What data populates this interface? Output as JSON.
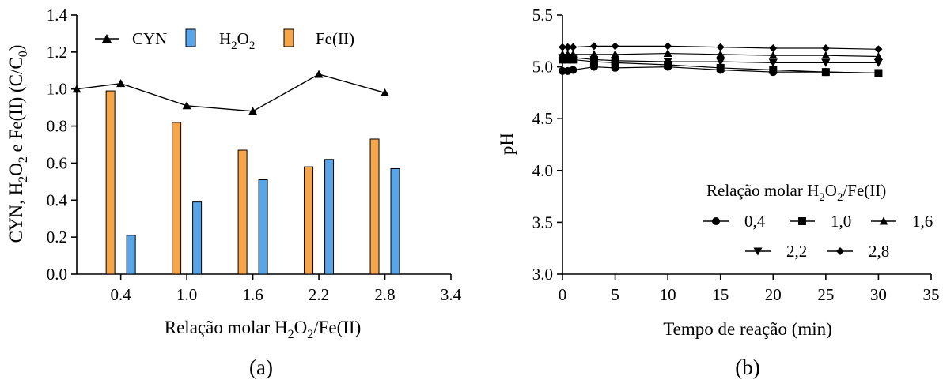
{
  "chart_data": [
    {
      "panel": "(a)",
      "type": "bar",
      "xlabel": "Relação molar H2O2/Fe(II)",
      "ylabel": "CYN, H2O2 e Fe(II) (C/C0)",
      "xlim": [
        0,
        3.4
      ],
      "ylim": [
        0,
        1.4
      ],
      "xticks": [
        "0.4",
        "1.0",
        "1.6",
        "2.2",
        "2.8",
        "3.4"
      ],
      "yticks": [
        "0.0",
        "0.2",
        "0.4",
        "0.6",
        "0.8",
        "1.0",
        "1.2",
        "1.4"
      ],
      "categories": [
        "0.4",
        "1.0",
        "1.6",
        "2.2",
        "2.8"
      ],
      "series": [
        {
          "name": "Fe(II)",
          "kind": "bar",
          "color": "#f5a54a",
          "values": [
            0.99,
            0.82,
            0.67,
            0.58,
            0.73
          ]
        },
        {
          "name": "H2O2",
          "kind": "bar",
          "color": "#5aa4e8",
          "values": [
            0.21,
            0.39,
            0.51,
            0.62,
            0.57
          ]
        },
        {
          "name": "CYN",
          "kind": "line",
          "marker": "triangle",
          "x": [
            0,
            0.4,
            1.0,
            1.6,
            2.2,
            2.8
          ],
          "values": [
            1.0,
            1.03,
            0.91,
            0.88,
            1.08,
            0.98
          ]
        }
      ],
      "legend": [
        "CYN",
        "H2O2",
        "Fe(II)"
      ],
      "legend_placement": "top"
    },
    {
      "panel": "(b)",
      "type": "line",
      "xlabel": "Tempo de reação (min)",
      "ylabel": "pH",
      "xlim": [
        0,
        35
      ],
      "ylim": [
        3.0,
        5.5
      ],
      "xticks": [
        "0",
        "5",
        "10",
        "15",
        "20",
        "25",
        "30",
        "35"
      ],
      "yticks": [
        "3.0",
        "3.5",
        "4.0",
        "4.5",
        "5.0",
        "5.5"
      ],
      "x": [
        0,
        0.5,
        1,
        3,
        5,
        10,
        15,
        20,
        25,
        30
      ],
      "legend_title": "Relação molar H2O2/Fe(II)",
      "legend_placement": "lower-right",
      "series": [
        {
          "name": "0,4",
          "marker": "circle",
          "values": [
            4.96,
            4.96,
            4.97,
            5.0,
            4.99,
            5.0,
            4.97,
            4.95,
            4.95,
            4.94
          ]
        },
        {
          "name": "1,0",
          "marker": "square",
          "values": [
            5.07,
            5.07,
            5.07,
            5.05,
            5.04,
            5.02,
            4.99,
            4.97,
            4.95,
            4.94
          ]
        },
        {
          "name": "1,6",
          "marker": "triangle-up",
          "values": [
            5.12,
            5.12,
            5.12,
            5.12,
            5.12,
            5.13,
            5.12,
            5.11,
            5.11,
            5.1
          ]
        },
        {
          "name": "2,2",
          "marker": "triangle-down",
          "values": [
            5.09,
            5.09,
            5.09,
            5.07,
            5.06,
            5.05,
            5.05,
            5.04,
            5.04,
            5.04
          ]
        },
        {
          "name": "2,8",
          "marker": "diamond",
          "values": [
            5.19,
            5.19,
            5.19,
            5.2,
            5.2,
            5.2,
            5.19,
            5.18,
            5.18,
            5.17
          ]
        }
      ]
    }
  ],
  "panels": {
    "a": {
      "label": "(a)",
      "ylabel": {
        "p1": "CYN, H",
        "s1": "2",
        "p2": "O",
        "s2": "2",
        "p3": " e Fe(II) (C/C",
        "s3": "0",
        "p4": ")"
      },
      "xlabel": {
        "p1": "Relação molar H",
        "s1": "2",
        "p2": "O",
        "s2": "2",
        "p3": "/Fe(II)"
      },
      "legend": {
        "cyn": "CYN",
        "h2o2_p1": "H",
        "h2o2_s1": "2",
        "h2o2_p2": "O",
        "h2o2_s2": "2",
        "fe": "Fe(II)"
      }
    },
    "b": {
      "label": "(b)",
      "ylabel": "pH",
      "xlabel": "Tempo de reação (min)",
      "legend_title": {
        "p1": "Relação molar H",
        "s1": "2",
        "p2": "O",
        "s2": "2",
        "p3": "/Fe(II)"
      },
      "legend": [
        "0,4",
        "1,0",
        "1,6",
        "2,2",
        "2,8"
      ]
    }
  }
}
